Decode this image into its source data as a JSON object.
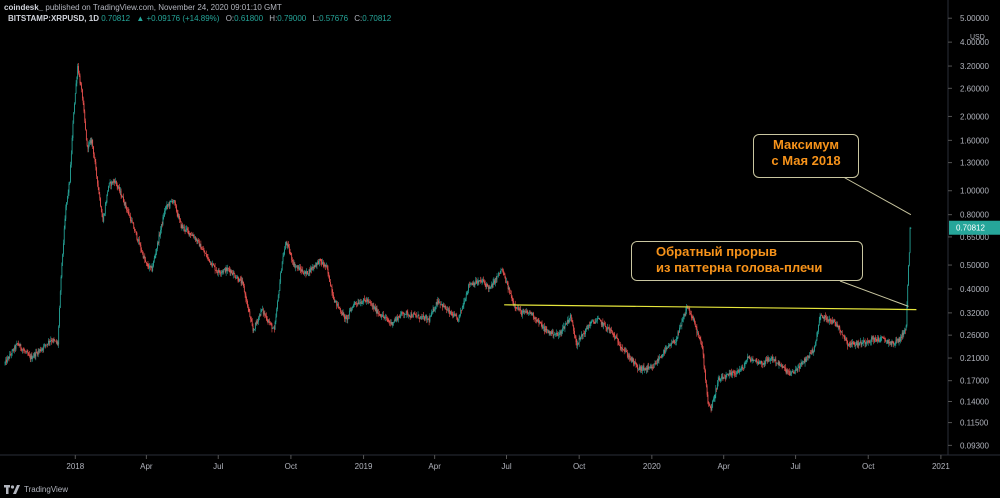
{
  "header": {
    "author": "coindesk_",
    "published": "published on TradingView.com, November 24, 2020 09:01:10 GMT",
    "symbol": "BITSTAMP:XRPUSD, 1D",
    "last": "0.70812",
    "change": "▲ +0.09176 (+14.89%)",
    "open_label": "O:",
    "open": "0.61800",
    "high_label": "H:",
    "high": "0.79000",
    "low_label": "L:",
    "low": "0.57676",
    "close_label": "C:",
    "close": "0.70812"
  },
  "footer": {
    "brand": "TradingView"
  },
  "annotations": {
    "max": [
      "Максимум",
      "с Мая 2018"
    ],
    "breakout": [
      "Обратный прорыв",
      "из паттерна голова-плечи"
    ]
  },
  "colors": {
    "up": "#26a69a",
    "down": "#ef5350",
    "neckline": "#e6e63c",
    "callout_text": "#f7931a",
    "price_tag": "#26a69a",
    "axis_text": "#b2b5be"
  },
  "chart_data": {
    "type": "candlestick",
    "y_scale": "log",
    "y_unit": "USD",
    "y_ticks": [
      5.0,
      4.0,
      3.2,
      2.6,
      2.0,
      1.6,
      1.3,
      1.0,
      0.8,
      0.65,
      0.5,
      0.4,
      0.32,
      0.26,
      0.21,
      0.17,
      0.14,
      0.115,
      0.093
    ],
    "y_tick_labels": [
      "5.00000",
      "4.00000",
      "3.20000",
      "2.60000",
      "2.00000",
      "1.60000",
      "1.30000",
      "1.00000",
      "0.80000",
      "0.65000",
      "0.50000",
      "0.40000",
      "0.32000",
      "0.26000",
      "0.21000",
      "0.17000",
      "0.14000",
      "0.11500",
      "0.09300"
    ],
    "current_price": 0.70812,
    "x_ticks": [
      "2018-01-01",
      "2018-04-01",
      "2018-07-01",
      "2018-10-01",
      "2019-01-01",
      "2019-04-01",
      "2019-07-01",
      "2019-10-01",
      "2020-01-01",
      "2020-04-01",
      "2020-07-01",
      "2020-10-01",
      "2021-01-01"
    ],
    "x_tick_labels": [
      "2018",
      "Apr",
      "Jul",
      "Oct",
      "2019",
      "Apr",
      "Jul",
      "Oct",
      "2020",
      "Apr",
      "Jul",
      "Oct",
      "2021"
    ],
    "x_range": [
      "2017-10-04",
      "2021-01-10"
    ],
    "neckline": {
      "from": [
        "2019-06-28",
        0.345
      ],
      "to": [
        "2020-12-01",
        0.33
      ]
    },
    "price_path": [
      [
        "2017-10-04",
        0.2
      ],
      [
        "2017-10-20",
        0.24
      ],
      [
        "2017-11-05",
        0.21
      ],
      [
        "2017-11-20",
        0.23
      ],
      [
        "2017-12-01",
        0.25
      ],
      [
        "2017-12-10",
        0.24
      ],
      [
        "2017-12-14",
        0.45
      ],
      [
        "2017-12-20",
        0.85
      ],
      [
        "2017-12-25",
        1.1
      ],
      [
        "2017-12-30",
        2.1
      ],
      [
        "2018-01-04",
        3.2
      ],
      [
        "2018-01-10",
        2.4
      ],
      [
        "2018-01-16",
        1.5
      ],
      [
        "2018-01-22",
        1.6
      ],
      [
        "2018-01-28",
        1.15
      ],
      [
        "2018-02-05",
        0.75
      ],
      [
        "2018-02-12",
        1.05
      ],
      [
        "2018-02-20",
        1.1
      ],
      [
        "2018-03-01",
        0.95
      ],
      [
        "2018-03-10",
        0.8
      ],
      [
        "2018-03-20",
        0.65
      ],
      [
        "2018-04-01",
        0.5
      ],
      [
        "2018-04-08",
        0.48
      ],
      [
        "2018-04-25",
        0.85
      ],
      [
        "2018-05-05",
        0.92
      ],
      [
        "2018-05-15",
        0.72
      ],
      [
        "2018-06-01",
        0.65
      ],
      [
        "2018-06-15",
        0.55
      ],
      [
        "2018-06-30",
        0.47
      ],
      [
        "2018-07-15",
        0.48
      ],
      [
        "2018-08-01",
        0.42
      ],
      [
        "2018-08-14",
        0.27
      ],
      [
        "2018-08-25",
        0.33
      ],
      [
        "2018-09-10",
        0.27
      ],
      [
        "2018-09-20",
        0.52
      ],
      [
        "2018-09-25",
        0.62
      ],
      [
        "2018-10-05",
        0.5
      ],
      [
        "2018-10-20",
        0.46
      ],
      [
        "2018-11-06",
        0.52
      ],
      [
        "2018-11-15",
        0.49
      ],
      [
        "2018-11-25",
        0.36
      ],
      [
        "2018-12-10",
        0.3
      ],
      [
        "2018-12-20",
        0.35
      ],
      [
        "2019-01-05",
        0.36
      ],
      [
        "2019-01-20",
        0.32
      ],
      [
        "2019-02-05",
        0.29
      ],
      [
        "2019-02-20",
        0.32
      ],
      [
        "2019-03-10",
        0.31
      ],
      [
        "2019-03-25",
        0.3
      ],
      [
        "2019-04-05",
        0.36
      ],
      [
        "2019-04-20",
        0.32
      ],
      [
        "2019-05-01",
        0.3
      ],
      [
        "2019-05-15",
        0.42
      ],
      [
        "2019-06-01",
        0.43
      ],
      [
        "2019-06-10",
        0.4
      ],
      [
        "2019-06-25",
        0.48
      ],
      [
        "2019-07-10",
        0.35
      ],
      [
        "2019-07-20",
        0.32
      ],
      [
        "2019-08-01",
        0.32
      ],
      [
        "2019-08-20",
        0.27
      ],
      [
        "2019-09-05",
        0.26
      ],
      [
        "2019-09-20",
        0.31
      ],
      [
        "2019-09-28",
        0.24
      ],
      [
        "2019-10-15",
        0.29
      ],
      [
        "2019-10-25",
        0.3
      ],
      [
        "2019-11-10",
        0.27
      ],
      [
        "2019-11-25",
        0.23
      ],
      [
        "2019-12-15",
        0.19
      ],
      [
        "2020-01-01",
        0.19
      ],
      [
        "2020-01-15",
        0.22
      ],
      [
        "2020-02-01",
        0.25
      ],
      [
        "2020-02-15",
        0.34
      ],
      [
        "2020-02-24",
        0.29
      ],
      [
        "2020-03-05",
        0.23
      ],
      [
        "2020-03-12",
        0.14
      ],
      [
        "2020-03-16",
        0.13
      ],
      [
        "2020-03-25",
        0.17
      ],
      [
        "2020-04-10",
        0.18
      ],
      [
        "2020-04-25",
        0.19
      ],
      [
        "2020-05-01",
        0.21
      ],
      [
        "2020-05-20",
        0.2
      ],
      [
        "2020-06-01",
        0.21
      ],
      [
        "2020-06-25",
        0.18
      ],
      [
        "2020-07-10",
        0.2
      ],
      [
        "2020-07-25",
        0.23
      ],
      [
        "2020-08-01",
        0.31
      ],
      [
        "2020-08-15",
        0.3
      ],
      [
        "2020-08-25",
        0.28
      ],
      [
        "2020-09-05",
        0.24
      ],
      [
        "2020-09-20",
        0.24
      ],
      [
        "2020-10-05",
        0.25
      ],
      [
        "2020-10-20",
        0.25
      ],
      [
        "2020-11-01",
        0.24
      ],
      [
        "2020-11-10",
        0.25
      ],
      [
        "2020-11-18",
        0.28
      ],
      [
        "2020-11-21",
        0.5
      ],
      [
        "2020-11-23",
        0.62
      ],
      [
        "2020-11-24",
        0.70812
      ]
    ]
  }
}
